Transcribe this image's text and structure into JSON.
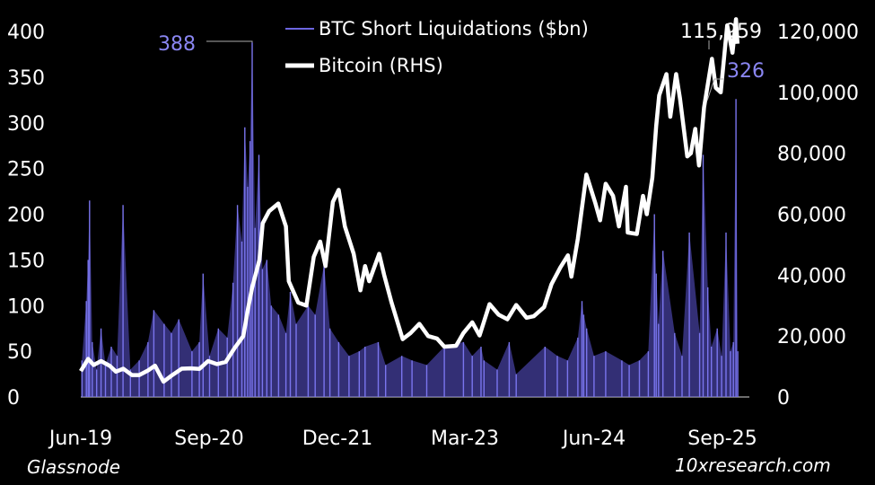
{
  "chart_data": {
    "type": "bar+line",
    "legend": [
      {
        "label": "BTC Short Liquidations ($bn)",
        "color": "#6c66e0",
        "style": "thin-line"
      },
      {
        "label": "Bitcoin (RHS)",
        "color": "#ffffff",
        "style": "thick-line"
      }
    ],
    "x_ticks": [
      "Jun-19",
      "Sep-20",
      "Dec-21",
      "Mar-23",
      "Jun-24",
      "Sep-25"
    ],
    "x_range_months": [
      "2019-06",
      "2025-09"
    ],
    "y_left": {
      "ticks": [
        0,
        50,
        100,
        150,
        200,
        250,
        300,
        350,
        400
      ],
      "range": [
        0,
        400
      ]
    },
    "y_right": {
      "ticks": [
        "0",
        "20,000",
        "40,000",
        "60,000",
        "80,000",
        "100,000",
        "120,000"
      ],
      "range": [
        0,
        120000
      ]
    },
    "annotations": {
      "liq_peak_label": "388",
      "liq_peak_value": 388,
      "liq_peak_date": "2021-01",
      "liq_last_label": "326",
      "liq_last_value": 326,
      "btc_last_label": "115,959",
      "btc_last_value": 115959
    },
    "series": [
      {
        "name": "BTC Short Liquidations ($bn)",
        "kind": "spikes",
        "points": [
          [
            "2019-06-05",
            40
          ],
          [
            "2019-06-20",
            105
          ],
          [
            "2019-06-26",
            150
          ],
          [
            "2019-07-01",
            215
          ],
          [
            "2019-07-10",
            60
          ],
          [
            "2019-07-25",
            30
          ],
          [
            "2019-08-10",
            75
          ],
          [
            "2019-08-25",
            35
          ],
          [
            "2019-09-15",
            55
          ],
          [
            "2019-10-05",
            45
          ],
          [
            "2019-10-25",
            210
          ],
          [
            "2019-11-20",
            30
          ],
          [
            "2019-12-20",
            40
          ],
          [
            "2020-01-20",
            60
          ],
          [
            "2020-02-10",
            95
          ],
          [
            "2020-03-15",
            80
          ],
          [
            "2020-04-10",
            70
          ],
          [
            "2020-05-05",
            85
          ],
          [
            "2020-06-20",
            50
          ],
          [
            "2020-07-15",
            60
          ],
          [
            "2020-07-28",
            135
          ],
          [
            "2020-08-20",
            45
          ],
          [
            "2020-09-20",
            75
          ],
          [
            "2020-10-20",
            65
          ],
          [
            "2020-11-10",
            125
          ],
          [
            "2020-11-25",
            210
          ],
          [
            "2020-12-10",
            170
          ],
          [
            "2020-12-20",
            295
          ],
          [
            "2020-12-30",
            230
          ],
          [
            "2021-01-08",
            280
          ],
          [
            "2021-01-15",
            388
          ],
          [
            "2021-01-25",
            185
          ],
          [
            "2021-02-08",
            265
          ],
          [
            "2021-02-20",
            140
          ],
          [
            "2021-03-05",
            150
          ],
          [
            "2021-03-20",
            100
          ],
          [
            "2021-04-15",
            90
          ],
          [
            "2021-05-10",
            70
          ],
          [
            "2021-05-25",
            115
          ],
          [
            "2021-06-15",
            80
          ],
          [
            "2021-07-26",
            100
          ],
          [
            "2021-08-20",
            90
          ],
          [
            "2021-09-20",
            145
          ],
          [
            "2021-10-10",
            75
          ],
          [
            "2021-11-10",
            60
          ],
          [
            "2021-12-15",
            45
          ],
          [
            "2022-01-20",
            50
          ],
          [
            "2022-02-10",
            55
          ],
          [
            "2022-03-25",
            60
          ],
          [
            "2022-04-20",
            35
          ],
          [
            "2022-06-15",
            45
          ],
          [
            "2022-07-20",
            40
          ],
          [
            "2022-09-10",
            35
          ],
          [
            "2022-11-10",
            55
          ],
          [
            "2023-01-15",
            60
          ],
          [
            "2023-02-15",
            45
          ],
          [
            "2023-03-15",
            55
          ],
          [
            "2023-03-25",
            40
          ],
          [
            "2023-05-10",
            30
          ],
          [
            "2023-06-21",
            60
          ],
          [
            "2023-07-15",
            25
          ],
          [
            "2023-10-23",
            55
          ],
          [
            "2023-12-05",
            45
          ],
          [
            "2024-01-10",
            40
          ],
          [
            "2024-02-15",
            65
          ],
          [
            "2024-02-29",
            105
          ],
          [
            "2024-03-05",
            90
          ],
          [
            "2024-03-15",
            75
          ],
          [
            "2024-04-10",
            45
          ],
          [
            "2024-05-20",
            50
          ],
          [
            "2024-07-15",
            40
          ],
          [
            "2024-08-10",
            35
          ],
          [
            "2024-09-15",
            40
          ],
          [
            "2024-10-15",
            50
          ],
          [
            "2024-11-06",
            200
          ],
          [
            "2024-11-12",
            135
          ],
          [
            "2024-11-20",
            80
          ],
          [
            "2024-12-05",
            160
          ],
          [
            "2025-01-15",
            70
          ],
          [
            "2025-02-10",
            45
          ],
          [
            "2025-03-05",
            180
          ],
          [
            "2025-04-10",
            70
          ],
          [
            "2025-04-22",
            265
          ],
          [
            "2025-05-08",
            120
          ],
          [
            "2025-05-20",
            55
          ],
          [
            "2025-06-10",
            75
          ],
          [
            "2025-06-25",
            45
          ],
          [
            "2025-07-10",
            180
          ],
          [
            "2025-07-25",
            50
          ],
          [
            "2025-08-05",
            60
          ],
          [
            "2025-08-14",
            326
          ],
          [
            "2025-08-20",
            50
          ]
        ]
      },
      {
        "name": "Bitcoin (RHS)",
        "kind": "line",
        "points": [
          [
            "2019-06-01",
            8500
          ],
          [
            "2019-06-26",
            12500
          ],
          [
            "2019-07-15",
            10500
          ],
          [
            "2019-08-10",
            11800
          ],
          [
            "2019-09-10",
            10200
          ],
          [
            "2019-10-01",
            8300
          ],
          [
            "2019-10-26",
            9300
          ],
          [
            "2019-11-25",
            7200
          ],
          [
            "2019-12-20",
            7200
          ],
          [
            "2020-01-20",
            8700
          ],
          [
            "2020-02-14",
            10300
          ],
          [
            "2020-03-13",
            5000
          ],
          [
            "2020-04-10",
            7000
          ],
          [
            "2020-05-15",
            9300
          ],
          [
            "2020-06-15",
            9400
          ],
          [
            "2020-07-15",
            9200
          ],
          [
            "2020-08-15",
            11800
          ],
          [
            "2020-09-15",
            10800
          ],
          [
            "2020-10-15",
            11500
          ],
          [
            "2020-11-15",
            16000
          ],
          [
            "2020-12-15",
            20000
          ],
          [
            "2020-12-31",
            29000
          ],
          [
            "2021-01-15",
            36000
          ],
          [
            "2021-02-10",
            45000
          ],
          [
            "2021-02-21",
            57000
          ],
          [
            "2021-03-13",
            61000
          ],
          [
            "2021-04-14",
            63500
          ],
          [
            "2021-05-10",
            56000
          ],
          [
            "2021-05-20",
            38000
          ],
          [
            "2021-06-22",
            31000
          ],
          [
            "2021-07-20",
            30000
          ],
          [
            "2021-08-15",
            46000
          ],
          [
            "2021-09-07",
            51000
          ],
          [
            "2021-09-25",
            43000
          ],
          [
            "2021-10-20",
            64000
          ],
          [
            "2021-11-10",
            68000
          ],
          [
            "2021-12-01",
            56000
          ],
          [
            "2022-01-01",
            47000
          ],
          [
            "2022-01-24",
            35000
          ],
          [
            "2022-02-10",
            43000
          ],
          [
            "2022-02-24",
            38000
          ],
          [
            "2022-03-28",
            47000
          ],
          [
            "2022-04-15",
            40000
          ],
          [
            "2022-05-10",
            31000
          ],
          [
            "2022-06-18",
            19000
          ],
          [
            "2022-07-15",
            21000
          ],
          [
            "2022-08-15",
            24000
          ],
          [
            "2022-09-15",
            20000
          ],
          [
            "2022-10-15",
            19200
          ],
          [
            "2022-11-10",
            16500
          ],
          [
            "2022-12-20",
            16800
          ],
          [
            "2023-01-15",
            21000
          ],
          [
            "2023-02-15",
            24500
          ],
          [
            "2023-03-10",
            20200
          ],
          [
            "2023-04-14",
            30500
          ],
          [
            "2023-05-15",
            27000
          ],
          [
            "2023-06-15",
            25500
          ],
          [
            "2023-07-15",
            30200
          ],
          [
            "2023-08-20",
            26000
          ],
          [
            "2023-09-15",
            26500
          ],
          [
            "2023-10-20",
            29500
          ],
          [
            "2023-11-15",
            37000
          ],
          [
            "2023-12-15",
            42500
          ],
          [
            "2024-01-11",
            46500
          ],
          [
            "2024-01-23",
            39500
          ],
          [
            "2024-02-15",
            52000
          ],
          [
            "2024-03-14",
            73000
          ],
          [
            "2024-04-15",
            63500
          ],
          [
            "2024-05-01",
            58000
          ],
          [
            "2024-05-20",
            70000
          ],
          [
            "2024-06-15",
            66000
          ],
          [
            "2024-07-05",
            56000
          ],
          [
            "2024-07-29",
            69000
          ],
          [
            "2024-08-05",
            54000
          ],
          [
            "2024-09-06",
            53500
          ],
          [
            "2024-09-27",
            66000
          ],
          [
            "2024-10-10",
            60000
          ],
          [
            "2024-10-29",
            72000
          ],
          [
            "2024-11-12",
            89000
          ],
          [
            "2024-11-22",
            99000
          ],
          [
            "2024-12-17",
            106000
          ],
          [
            "2024-12-30",
            92000
          ],
          [
            "2025-01-20",
            106000
          ],
          [
            "2025-02-03",
            98000
          ],
          [
            "2025-02-28",
            79000
          ],
          [
            "2025-03-10",
            80000
          ],
          [
            "2025-03-25",
            88000
          ],
          [
            "2025-04-08",
            76000
          ],
          [
            "2025-04-25",
            95000
          ],
          [
            "2025-05-22",
            111000
          ],
          [
            "2025-06-05",
            101500
          ],
          [
            "2025-06-22",
            100000
          ],
          [
            "2025-07-14",
            122000
          ],
          [
            "2025-08-02",
            113000
          ],
          [
            "2025-08-14",
            124000
          ],
          [
            "2025-08-19",
            115959
          ]
        ]
      }
    ]
  },
  "footer": {
    "source": "Glassnode",
    "brand": "10xresearch.com"
  }
}
